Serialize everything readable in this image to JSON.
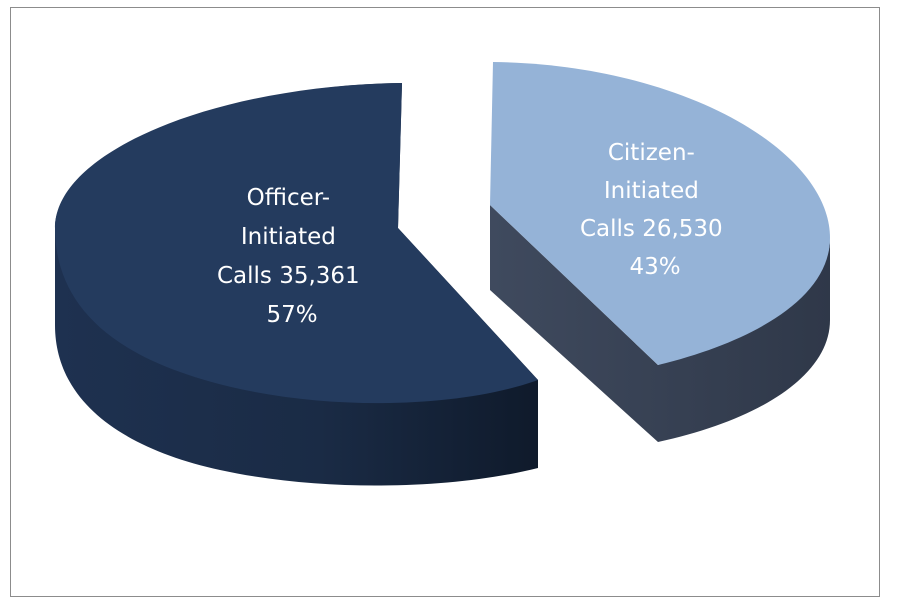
{
  "chart_data": {
    "type": "pie",
    "style": "3d-exploded",
    "title": "",
    "slices": [
      {
        "label_lines": [
          "Officer-",
          "Initiated",
          "Calls 35,361",
          "57%"
        ],
        "value": 35361,
        "percent": 57,
        "color_top": "#243b5e",
        "color_side": "#18283f",
        "label_color": "#ffffff"
      },
      {
        "label_lines": [
          "Citizen-",
          "Initiated",
          "Calls 26,530",
          "43%"
        ],
        "value": 26530,
        "percent": 43,
        "color_top": "#95b3d7",
        "color_side": "#3a4457",
        "label_color": "#ffffff"
      }
    ]
  }
}
